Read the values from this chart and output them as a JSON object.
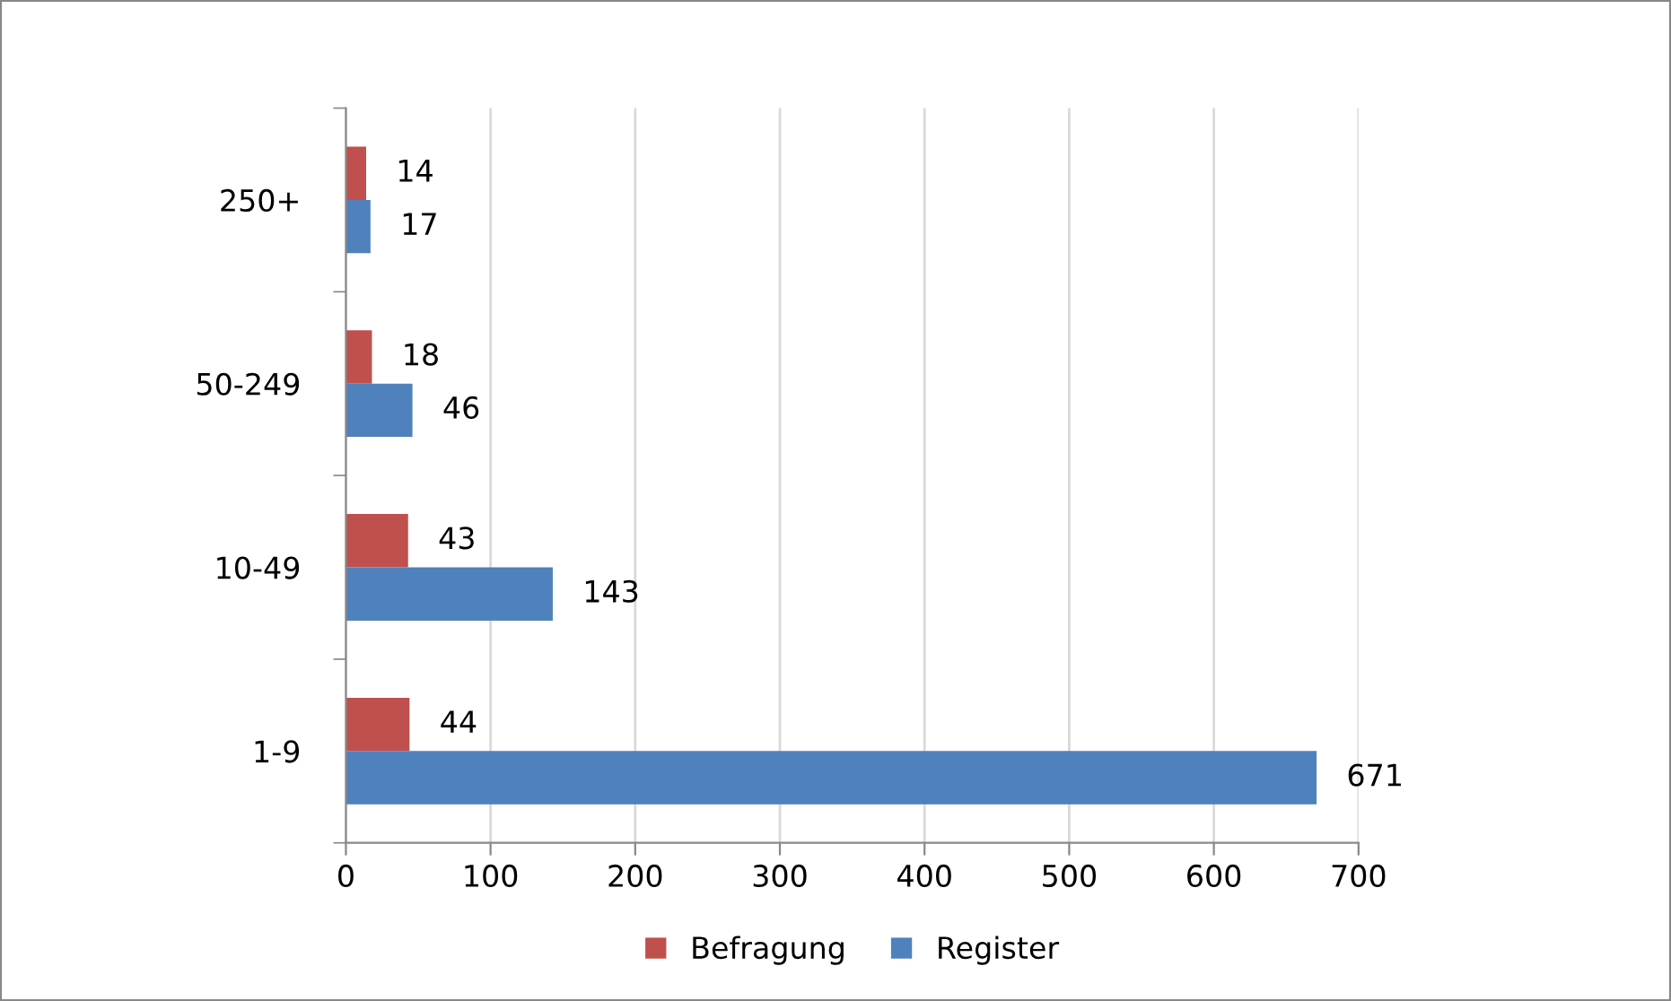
{
  "chart_data": {
    "type": "bar",
    "orientation": "horizontal",
    "categories": [
      "250+",
      "50-249",
      "10-49",
      "1-9"
    ],
    "series": [
      {
        "name": "Befragung",
        "color": "#c0504d",
        "values": [
          14,
          18,
          43,
          44
        ]
      },
      {
        "name": "Register",
        "color": "#4f81bd",
        "values": [
          17,
          46,
          143,
          671
        ]
      }
    ],
    "xlim": [
      0,
      700
    ],
    "xticks": [
      0,
      100,
      200,
      300,
      400,
      500,
      600,
      700
    ],
    "grid": "x",
    "legend": "bottom",
    "data_labels": true
  }
}
